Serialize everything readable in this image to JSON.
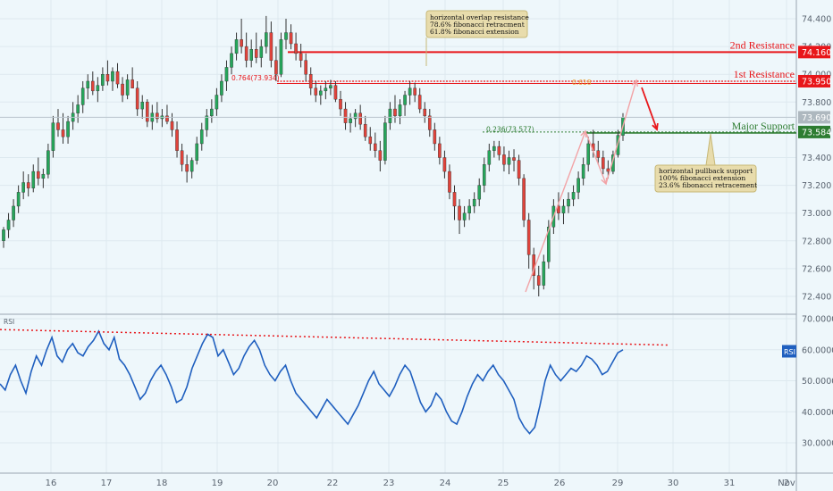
{
  "chart_data": [
    {
      "type": "candlestick",
      "ylim": [
        72.3,
        74.5
      ],
      "y_ticks": [
        "74.400",
        "74.200",
        "74.000",
        "73.800",
        "73.600",
        "73.400",
        "73.200",
        "73.000",
        "72.800",
        "72.600",
        "72.400"
      ],
      "x_ticks": [
        "16",
        "17",
        "18",
        "19",
        "20",
        "22",
        "23",
        "24",
        "25",
        "26",
        "29",
        "30",
        "31",
        "Nov",
        "2"
      ],
      "current_price": "73.690",
      "levels": [
        {
          "label": "2nd Resistance",
          "value": "74.160",
          "color": "#e8161a"
        },
        {
          "label": "1st Resistance",
          "value": "73.950",
          "color": "#e8161a"
        },
        {
          "label": "Major Support",
          "value": "73.584",
          "color": "#2e7d32"
        }
      ],
      "fib_labels": [
        {
          "text": "0.764(73.934)",
          "color": "#e8161a"
        },
        {
          "text": "0.618",
          "color": "#e8a030"
        },
        {
          "text": "0.236(73.577)",
          "color": "#2e7d32"
        }
      ],
      "annotations": [
        {
          "lines": [
            "horizontal overlap resistance",
            "78.6% fibonacci retracment",
            "61.8% fibonacci extension"
          ]
        },
        {
          "lines": [
            "horizontal pullback support",
            "100% fibonacci extension",
            "23.6% fibonacci retracement"
          ]
        }
      ],
      "ohlc": [
        [
          72.8,
          72.9,
          72.75,
          72.88
        ],
        [
          72.88,
          73.0,
          72.82,
          72.95
        ],
        [
          72.95,
          73.1,
          72.9,
          73.05
        ],
        [
          73.05,
          73.2,
          73.0,
          73.15
        ],
        [
          73.15,
          73.3,
          73.1,
          73.22
        ],
        [
          73.22,
          73.28,
          73.12,
          73.18
        ],
        [
          73.18,
          73.35,
          73.15,
          73.3
        ],
        [
          73.3,
          73.4,
          73.2,
          73.25
        ],
        [
          73.25,
          73.32,
          73.18,
          73.28
        ],
        [
          73.28,
          73.5,
          73.25,
          73.45
        ],
        [
          73.45,
          73.7,
          73.4,
          73.65
        ],
        [
          73.65,
          73.75,
          73.55,
          73.6
        ],
        [
          73.6,
          73.72,
          73.5,
          73.55
        ],
        [
          73.55,
          73.7,
          73.5,
          73.66
        ],
        [
          73.66,
          73.8,
          73.6,
          73.72
        ],
        [
          73.72,
          73.85,
          73.65,
          73.78
        ],
        [
          73.78,
          73.95,
          73.72,
          73.9
        ],
        [
          73.9,
          74.0,
          73.82,
          73.95
        ],
        [
          73.95,
          74.02,
          73.85,
          73.88
        ],
        [
          73.88,
          73.98,
          73.8,
          73.92
        ],
        [
          73.92,
          74.05,
          73.88,
          74.0
        ],
        [
          74.0,
          74.1,
          73.92,
          73.95
        ],
        [
          73.95,
          74.05,
          73.88,
          74.02
        ],
        [
          74.02,
          74.08,
          73.9,
          73.93
        ],
        [
          73.93,
          73.98,
          73.8,
          73.85
        ],
        [
          73.85,
          74.0,
          73.82,
          73.96
        ],
        [
          73.96,
          74.05,
          73.9,
          73.9
        ],
        [
          73.9,
          73.95,
          73.7,
          73.75
        ],
        [
          73.75,
          73.85,
          73.68,
          73.8
        ],
        [
          73.8,
          73.82,
          73.62,
          73.66
        ],
        [
          73.66,
          73.78,
          73.6,
          73.72
        ],
        [
          73.72,
          73.8,
          73.65,
          73.68
        ],
        [
          73.68,
          73.75,
          73.62,
          73.7
        ],
        [
          73.7,
          73.78,
          73.64,
          73.66
        ],
        [
          73.66,
          73.72,
          73.55,
          73.6
        ],
        [
          73.6,
          73.66,
          73.4,
          73.45
        ],
        [
          73.45,
          73.5,
          73.3,
          73.35
        ],
        [
          73.35,
          73.42,
          73.22,
          73.3
        ],
        [
          73.3,
          73.4,
          73.25,
          73.38
        ],
        [
          73.38,
          73.55,
          73.35,
          73.5
        ],
        [
          73.5,
          73.65,
          73.45,
          73.6
        ],
        [
          73.6,
          73.75,
          73.55,
          73.7
        ],
        [
          73.7,
          73.82,
          73.65,
          73.75
        ],
        [
          73.75,
          73.9,
          73.7,
          73.85
        ],
        [
          73.85,
          74.0,
          73.8,
          73.95
        ],
        [
          73.95,
          74.1,
          73.88,
          74.05
        ],
        [
          74.05,
          74.2,
          74.0,
          74.15
        ],
        [
          74.15,
          74.3,
          74.1,
          74.25
        ],
        [
          74.25,
          74.4,
          74.15,
          74.2
        ],
        [
          74.2,
          74.3,
          74.05,
          74.1
        ],
        [
          74.1,
          74.25,
          74.05,
          74.18
        ],
        [
          74.18,
          74.3,
          74.08,
          74.12
        ],
        [
          74.12,
          74.25,
          74.05,
          74.2
        ],
        [
          74.2,
          74.42,
          74.15,
          74.3
        ],
        [
          74.3,
          74.38,
          74.05,
          74.1
        ],
        [
          74.1,
          74.2,
          73.95,
          74.0
        ],
        [
          74.0,
          74.3,
          73.98,
          74.25
        ],
        [
          74.25,
          74.4,
          74.18,
          74.3
        ],
        [
          74.3,
          74.36,
          74.18,
          74.22
        ],
        [
          74.22,
          74.3,
          74.1,
          74.15
        ],
        [
          74.15,
          74.22,
          74.05,
          74.1
        ],
        [
          74.1,
          74.15,
          73.95,
          74.0
        ],
        [
          74.0,
          74.05,
          73.85,
          73.9
        ],
        [
          73.9,
          73.95,
          73.8,
          73.85
        ],
        [
          73.85,
          73.92,
          73.78,
          73.88
        ],
        [
          73.88,
          73.95,
          73.82,
          73.9
        ],
        [
          73.9,
          73.96,
          73.85,
          73.92
        ],
        [
          73.92,
          73.95,
          73.8,
          73.82
        ],
        [
          73.82,
          73.88,
          73.7,
          73.75
        ],
        [
          73.75,
          73.8,
          73.6,
          73.65
        ],
        [
          73.65,
          73.72,
          73.58,
          73.68
        ],
        [
          73.68,
          73.75,
          73.62,
          73.72
        ],
        [
          73.72,
          73.78,
          73.6,
          73.64
        ],
        [
          73.64,
          73.7,
          73.52,
          73.55
        ],
        [
          73.55,
          73.62,
          73.45,
          73.5
        ],
        [
          73.5,
          73.58,
          73.4,
          73.45
        ],
        [
          73.45,
          73.52,
          73.3,
          73.38
        ],
        [
          73.38,
          73.7,
          73.35,
          73.65
        ],
        [
          73.65,
          73.8,
          73.6,
          73.75
        ],
        [
          73.75,
          73.85,
          73.65,
          73.7
        ],
        [
          73.7,
          73.82,
          73.64,
          73.78
        ],
        [
          73.78,
          73.88,
          73.7,
          73.85
        ],
        [
          73.85,
          73.95,
          73.78,
          73.9
        ],
        [
          73.9,
          73.94,
          73.8,
          73.85
        ],
        [
          73.85,
          73.9,
          73.72,
          73.75
        ],
        [
          73.75,
          73.8,
          73.65,
          73.7
        ],
        [
          73.7,
          73.75,
          73.55,
          73.6
        ],
        [
          73.6,
          73.65,
          73.45,
          73.5
        ],
        [
          73.5,
          73.55,
          73.35,
          73.4
        ],
        [
          73.4,
          73.45,
          73.25,
          73.3
        ],
        [
          73.3,
          73.35,
          73.1,
          73.15
        ],
        [
          73.15,
          73.2,
          72.95,
          73.05
        ],
        [
          73.05,
          73.1,
          72.85,
          72.95
        ],
        [
          72.95,
          73.05,
          72.9,
          73.0
        ],
        [
          73.0,
          73.1,
          72.95,
          73.05
        ],
        [
          73.05,
          73.15,
          73.0,
          73.1
        ],
        [
          73.1,
          73.25,
          73.05,
          73.2
        ],
        [
          73.2,
          73.4,
          73.15,
          73.35
        ],
        [
          73.35,
          73.5,
          73.3,
          73.45
        ],
        [
          73.45,
          73.52,
          73.4,
          73.48
        ],
        [
          73.48,
          73.52,
          73.38,
          73.42
        ],
        [
          73.42,
          73.48,
          73.3,
          73.35
        ],
        [
          73.35,
          73.45,
          73.28,
          73.4
        ],
        [
          73.4,
          73.46,
          73.3,
          73.38
        ],
        [
          73.38,
          73.42,
          73.2,
          73.25
        ],
        [
          73.25,
          73.28,
          72.9,
          72.95
        ],
        [
          72.95,
          73.0,
          72.6,
          72.7
        ],
        [
          72.7,
          72.75,
          72.45,
          72.55
        ],
        [
          72.55,
          72.62,
          72.4,
          72.48
        ],
        [
          72.48,
          72.7,
          72.45,
          72.65
        ],
        [
          72.65,
          72.95,
          72.6,
          72.9
        ],
        [
          72.9,
          73.1,
          72.85,
          73.05
        ],
        [
          73.05,
          73.15,
          72.95,
          73.0
        ],
        [
          73.0,
          73.1,
          72.92,
          73.05
        ],
        [
          73.05,
          73.15,
          73.0,
          73.1
        ],
        [
          73.1,
          73.2,
          73.05,
          73.15
        ],
        [
          73.15,
          73.3,
          73.1,
          73.25
        ],
        [
          73.25,
          73.4,
          73.2,
          73.35
        ],
        [
          73.35,
          73.55,
          73.3,
          73.5
        ],
        [
          73.5,
          73.6,
          73.4,
          73.45
        ],
        [
          73.45,
          73.52,
          73.35,
          73.4
        ],
        [
          73.4,
          73.45,
          73.28,
          73.32
        ],
        [
          73.32,
          73.38,
          73.25,
          73.3
        ],
        [
          73.3,
          73.45,
          73.28,
          73.42
        ],
        [
          73.42,
          73.6,
          73.4,
          73.56
        ],
        [
          73.56,
          73.72,
          73.52,
          73.69
        ]
      ]
    },
    {
      "type": "line",
      "title": "RSI",
      "ylim": [
        25,
        70
      ],
      "y_ticks": [
        "70.0000",
        "60.0000",
        "50.0000",
        "40.0000",
        "30.0000"
      ],
      "current_value_label": "RSI",
      "values": [
        49,
        47,
        52,
        55,
        50,
        46,
        53,
        58,
        55,
        60,
        64,
        58,
        56,
        60,
        62,
        59,
        58,
        61,
        63,
        66,
        62,
        60,
        64,
        57,
        55,
        52,
        48,
        44,
        46,
        50,
        53,
        55,
        52,
        48,
        43,
        44,
        48,
        54,
        58,
        62,
        65,
        64,
        58,
        60,
        56,
        52,
        54,
        58,
        61,
        63,
        60,
        55,
        52,
        50,
        53,
        55,
        50,
        46,
        44,
        42,
        40,
        38,
        41,
        44,
        42,
        40,
        38,
        36,
        39,
        42,
        46,
        50,
        53,
        49,
        47,
        45,
        48,
        52,
        55,
        53,
        48,
        43,
        40,
        42,
        46,
        44,
        40,
        37,
        36,
        40,
        45,
        49,
        52,
        50,
        53,
        55,
        52,
        50,
        47,
        44,
        38,
        35,
        33,
        35,
        42,
        50,
        55,
        52,
        50,
        52,
        54,
        53,
        55,
        58,
        57,
        55,
        52,
        53,
        56,
        59,
        60
      ]
    }
  ]
}
